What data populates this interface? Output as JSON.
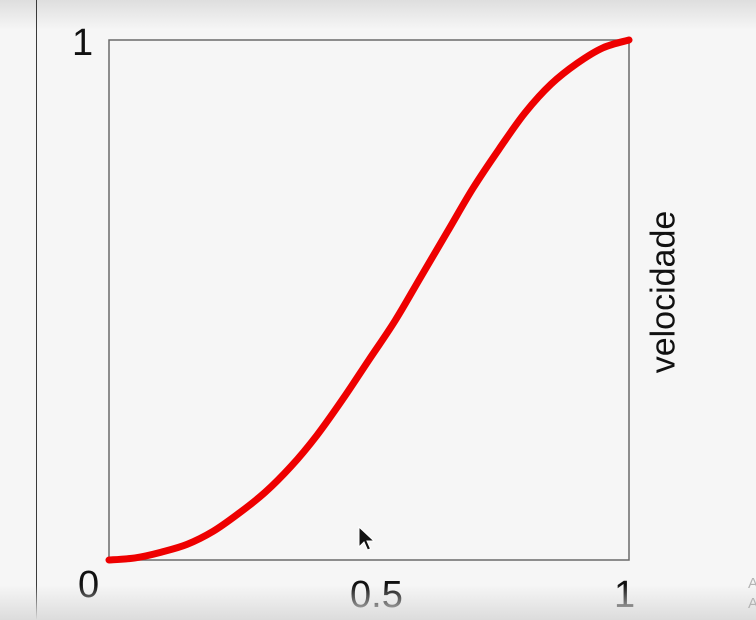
{
  "chart_data": {
    "type": "line",
    "title": "",
    "xlabel": "",
    "ylabel": "velocidade",
    "xlim": [
      0,
      1
    ],
    "ylim": [
      0,
      1
    ],
    "x_ticks": [
      "0",
      "0.5",
      "1"
    ],
    "y_ticks": [
      "0",
      "1"
    ],
    "grid": false,
    "series": [
      {
        "color": "#ee0000",
        "x": [
          0,
          0.05,
          0.1,
          0.15,
          0.2,
          0.25,
          0.3,
          0.35,
          0.4,
          0.45,
          0.5,
          0.55,
          0.6,
          0.65,
          0.7,
          0.75,
          0.8,
          0.85,
          0.9,
          0.95,
          1
        ],
        "y": [
          0,
          0.004,
          0.015,
          0.03,
          0.055,
          0.09,
          0.13,
          0.18,
          0.24,
          0.31,
          0.385,
          0.46,
          0.545,
          0.63,
          0.715,
          0.79,
          0.86,
          0.915,
          0.955,
          0.985,
          1
        ]
      }
    ]
  },
  "overlay": {
    "cursor_icon": "mouse-pointer-icon",
    "corner_text": [
      "A",
      "A"
    ]
  },
  "colors": {
    "background": "#f6f6f6",
    "frame": "#6a6a6a",
    "curve": "#ee0000"
  }
}
